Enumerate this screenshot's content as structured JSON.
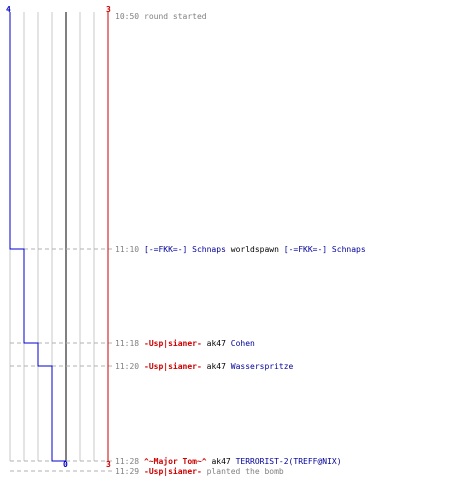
{
  "timeline": {
    "axis_top": {
      "left_count": "4",
      "right_count": "3"
    },
    "axis_bottom": {
      "zero_label": "0",
      "right_count": "3"
    },
    "events": [
      {
        "time": "10:50",
        "kind": "info",
        "parts": [
          {
            "text": "round started",
            "style": "gray"
          }
        ]
      },
      {
        "time": "11:10",
        "kind": "kill",
        "parts": [
          {
            "text": "[-=FKK=-] Schnaps",
            "style": "blue"
          },
          {
            "text": "worldspawn",
            "style": "black"
          },
          {
            "text": "[-=FKK=-] Schnaps",
            "style": "blue"
          }
        ]
      },
      {
        "time": "11:18",
        "kind": "kill",
        "parts": [
          {
            "text": "-Usp|sianer-",
            "style": "red"
          },
          {
            "text": "ak47",
            "style": "black"
          },
          {
            "text": "Cohen",
            "style": "blue"
          }
        ]
      },
      {
        "time": "11:20",
        "kind": "kill",
        "parts": [
          {
            "text": "-Usp|sianer-",
            "style": "red"
          },
          {
            "text": "ak47",
            "style": "black"
          },
          {
            "text": "Wasserspritze",
            "style": "blue"
          }
        ]
      },
      {
        "time": "11:28",
        "kind": "kill",
        "parts": [
          {
            "text": "^~Major Tom~^",
            "style": "red"
          },
          {
            "text": "ak47",
            "style": "black"
          },
          {
            "text": "TERRORIST-2(TREFF@NIX)",
            "style": "blue"
          }
        ]
      },
      {
        "time": "11:29",
        "kind": "bomb",
        "parts": [
          {
            "text": "-Usp|sianer-",
            "style": "red"
          },
          {
            "text": "planted the bomb",
            "style": "gray"
          }
        ]
      }
    ],
    "colors": {
      "ct_line": "#0000cc",
      "t_line": "#cc0000",
      "grid": "#c8c8c8",
      "center": "#808080",
      "dash": "#b0b0b0"
    }
  }
}
